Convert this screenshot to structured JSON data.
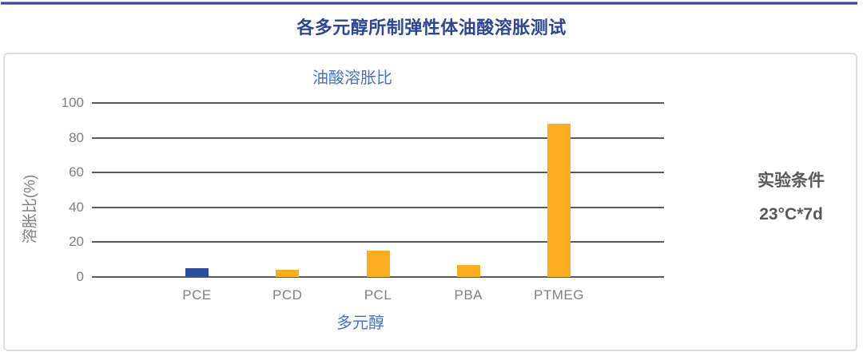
{
  "page": {
    "main_title": "各多元醇所制弹性体油酸溶胀测试"
  },
  "side_note": {
    "line1": "实验条件",
    "line2": "23°C*7d"
  },
  "chart_data": {
    "type": "bar",
    "title": "油酸溶胀比",
    "xlabel": "多元醇",
    "ylabel": "溶胀比(%)",
    "categories": [
      "PCE",
      "PCD",
      "PCL",
      "PBA",
      "PTMEG"
    ],
    "values": [
      5,
      4,
      15,
      7,
      88
    ],
    "bar_colors": [
      "#2e4d9e",
      "#faad1e",
      "#faad1e",
      "#faad1e",
      "#faad1e"
    ],
    "ylim": [
      0,
      100
    ],
    "yticks": [
      0,
      20,
      40,
      60,
      80,
      100
    ],
    "grid": true,
    "legend": false,
    "colors": {
      "accent_navy": "#2c4693",
      "axis_blue": "#4472c4",
      "gridline_gray": "#595959",
      "tick_gray": "#7f7f7f",
      "bar_orange": "#faad1e",
      "bar_blue": "#2e4d9e"
    }
  }
}
